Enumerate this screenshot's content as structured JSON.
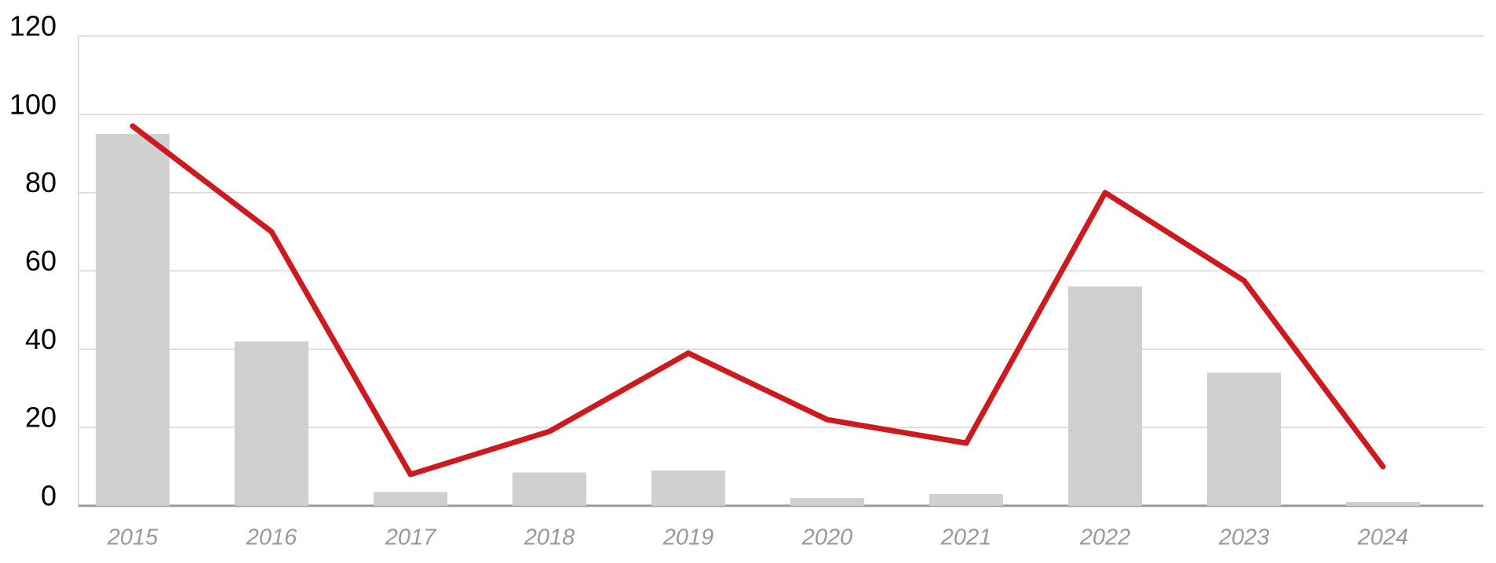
{
  "chart_data": {
    "type": "bar-line",
    "categories": [
      "2015",
      "2016",
      "2017",
      "2018",
      "2019",
      "2020",
      "2021",
      "2022",
      "2023",
      "2024"
    ],
    "series": [
      {
        "type": "bar",
        "color": "#d0d0d0",
        "values": [
          95,
          42,
          3.5,
          8.5,
          9,
          2,
          3,
          56,
          34,
          1
        ]
      },
      {
        "type": "line",
        "color": "#cc1a1e",
        "values": [
          97,
          70,
          8,
          19,
          39,
          22,
          16,
          80,
          57.5,
          10
        ]
      }
    ],
    "ylim": [
      0,
      120
    ],
    "yticks": [
      0,
      20,
      40,
      60,
      80,
      100,
      120
    ],
    "grid": true
  }
}
